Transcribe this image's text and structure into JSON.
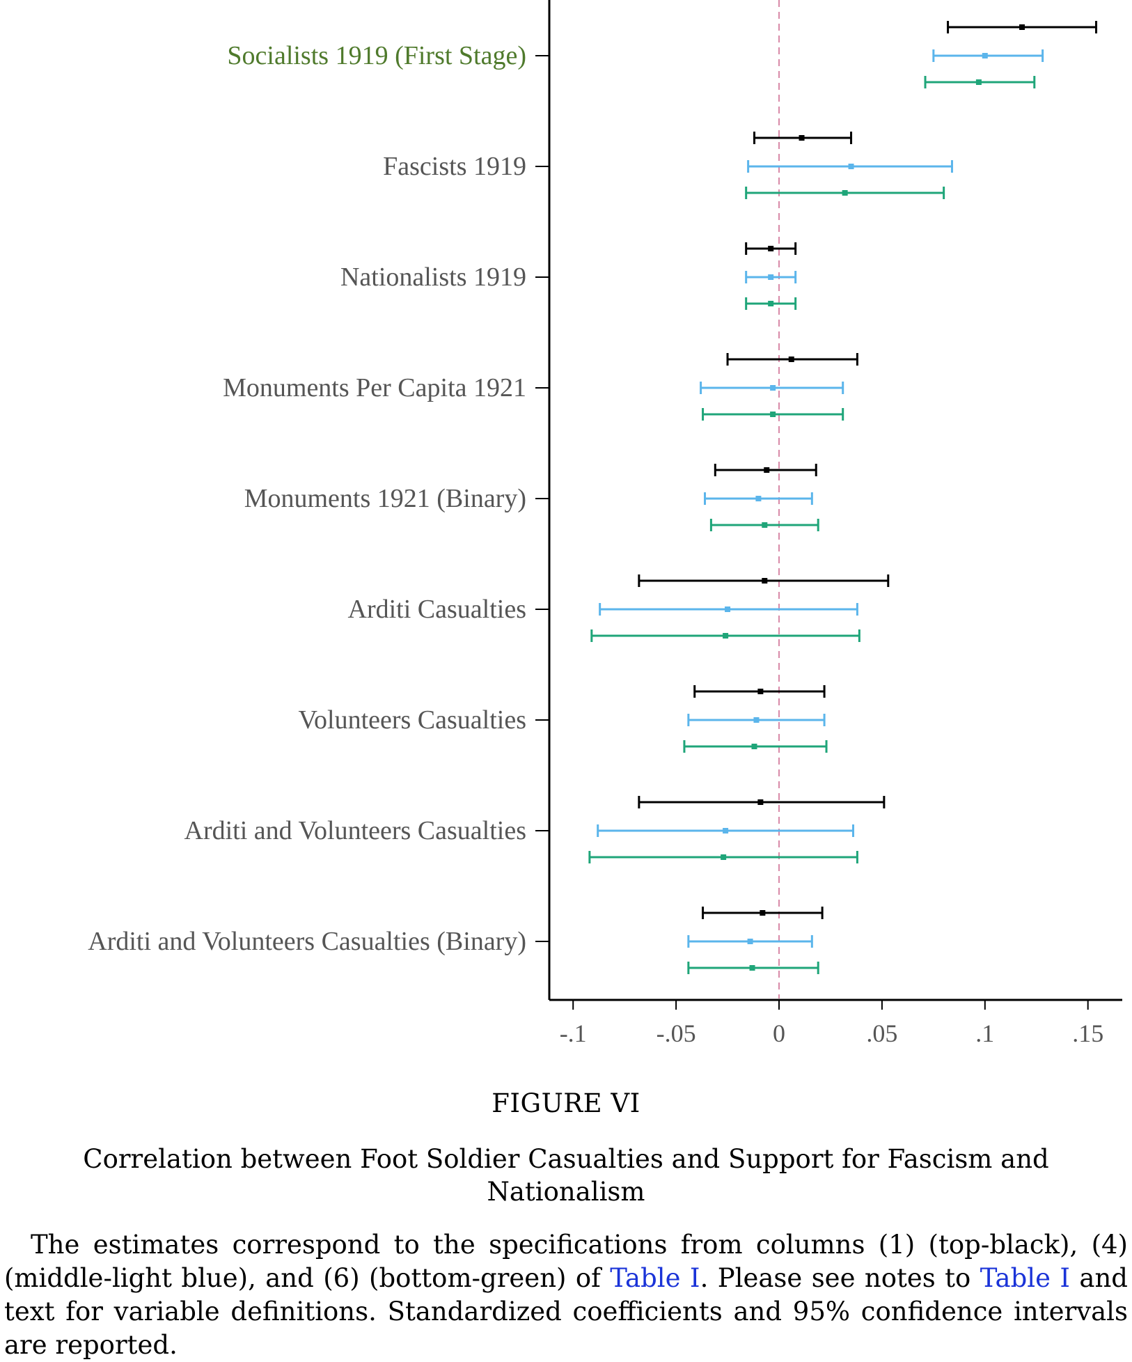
{
  "chart_data": {
    "type": "coefficient-plot",
    "orientation": "horizontal",
    "categories": [
      "Socialists 1919 (First Stage)",
      "Fascists 1919",
      "Nationalists 1919",
      "Monuments Per Capita 1921",
      "Monuments 1921 (Binary)",
      "Arditi Casualties",
      "Volunteers Casualties",
      "Arditi and Volunteers Casualties",
      "Arditi and Volunteers Casualties (Binary)"
    ],
    "series": [
      {
        "column": "(1)",
        "color": "#000000",
        "estimates": [
          0.118,
          0.011,
          -0.004,
          0.006,
          -0.006,
          -0.007,
          -0.009,
          -0.009,
          -0.008
        ],
        "ci_low": [
          0.082,
          -0.012,
          -0.016,
          -0.025,
          -0.031,
          -0.068,
          -0.041,
          -0.068,
          -0.037
        ],
        "ci_high": [
          0.154,
          0.035,
          0.008,
          0.038,
          0.018,
          0.053,
          0.022,
          0.051,
          0.021
        ]
      },
      {
        "column": "(4)",
        "color": "#5bb5eb",
        "estimates": [
          0.1,
          0.035,
          -0.004,
          -0.003,
          -0.01,
          -0.025,
          -0.011,
          -0.026,
          -0.014
        ],
        "ci_low": [
          0.075,
          -0.015,
          -0.016,
          -0.038,
          -0.036,
          -0.087,
          -0.044,
          -0.088,
          -0.044
        ],
        "ci_high": [
          0.128,
          0.084,
          0.008,
          0.031,
          0.016,
          0.038,
          0.022,
          0.036,
          0.016
        ]
      },
      {
        "column": "(6)",
        "color": "#1fa579",
        "estimates": [
          0.097,
          0.032,
          -0.004,
          -0.003,
          -0.007,
          -0.026,
          -0.012,
          -0.027,
          -0.013
        ],
        "ci_low": [
          0.071,
          -0.016,
          -0.016,
          -0.037,
          -0.033,
          -0.091,
          -0.046,
          -0.092,
          -0.044
        ],
        "ci_high": [
          0.124,
          0.08,
          0.008,
          0.031,
          0.019,
          0.039,
          0.023,
          0.038,
          0.019
        ]
      }
    ],
    "xlim": [
      -0.114,
      0.166
    ],
    "xticks": [
      -0.1,
      -0.05,
      0,
      0.05,
      0.1,
      0.15
    ],
    "xtick_labels": [
      "-.1",
      "-.05",
      "0",
      ".05",
      ".1",
      ".15"
    ],
    "reference_line": {
      "x": 0,
      "style": "dashed",
      "color": "#d98aa8"
    }
  },
  "figure": {
    "number": "FIGURE VI",
    "title": "Correlation between Foot Soldier Casualties and Support for Fascism and Nationalism",
    "notes_part1": "The estimates correspond to the specifications from columns (1) (top-black), (4) (middle-light blue), and (6) (bottom-green) of ",
    "notes_link1": "Table I",
    "notes_part2": ". Please see notes to ",
    "notes_link2": "Table I",
    "notes_part3": " and text for variable definitions. Standardized coefficients and 95% confidence intervals are reported."
  }
}
